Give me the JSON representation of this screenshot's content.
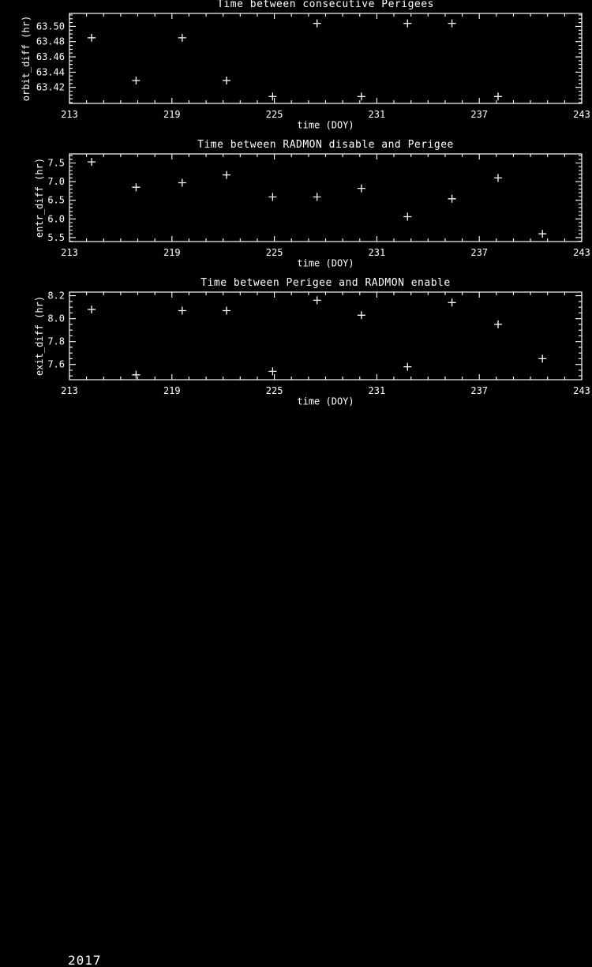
{
  "window": {
    "background": "#000000",
    "foreground": "#ffffff"
  },
  "footer": {
    "year": "2017"
  },
  "chart_data": [
    {
      "type": "scatter",
      "title": "Time between consecutive Perigees",
      "xlabel": "time (DOY)",
      "ylabel": "orbit_diff (hr)",
      "marker": "plus",
      "grid": false,
      "legend": null,
      "xlim": [
        213,
        243
      ],
      "ylim": [
        63.399,
        63.517
      ],
      "xticks": [
        213,
        219,
        225,
        231,
        237,
        243
      ],
      "xtick_labels": [
        "213",
        "219",
        "225",
        "231",
        "237",
        "243"
      ],
      "yticks": [
        63.42,
        63.44,
        63.46,
        63.48,
        63.5
      ],
      "ytick_labels": [
        "63.42",
        "63.44",
        "63.46",
        "63.48",
        "63.50"
      ],
      "x_minor_step": 1,
      "y_minor_step": 0.005,
      "x": [
        214.3,
        216.9,
        219.6,
        222.2,
        224.9,
        227.5,
        230.1,
        232.8,
        235.4,
        238.1
      ],
      "y": [
        63.485,
        63.429,
        63.485,
        63.429,
        63.408,
        63.504,
        63.408,
        63.504,
        63.504,
        63.408
      ]
    },
    {
      "type": "scatter",
      "title": "Time between RADMON disable and Perigee",
      "xlabel": "time (DOY)",
      "ylabel": "entr_diff (hr)",
      "marker": "plus",
      "grid": false,
      "legend": null,
      "xlim": [
        213,
        243
      ],
      "ylim": [
        5.392,
        7.744
      ],
      "xticks": [
        213,
        219,
        225,
        231,
        237,
        243
      ],
      "xtick_labels": [
        "213",
        "219",
        "225",
        "231",
        "237",
        "243"
      ],
      "yticks": [
        5.5,
        6.0,
        6.5,
        7.0,
        7.5
      ],
      "ytick_labels": [
        "5.5",
        "6.0",
        "6.5",
        "7.0",
        "7.5"
      ],
      "x_minor_step": 1,
      "y_minor_step": 0.1,
      "x": [
        214.3,
        216.9,
        219.6,
        222.2,
        224.9,
        227.5,
        230.1,
        232.8,
        235.4,
        238.1,
        240.7
      ],
      "y": [
        7.53,
        6.85,
        6.97,
        7.18,
        6.59,
        6.59,
        6.82,
        6.06,
        6.54,
        7.1,
        5.6
      ]
    },
    {
      "type": "scatter",
      "title": "Time between Perigee and RADMON enable",
      "xlabel": "time (DOY)",
      "ylabel": "exit_diff (hr)",
      "marker": "plus",
      "grid": false,
      "legend": null,
      "xlim": [
        213,
        243
      ],
      "ylim": [
        7.467,
        8.232
      ],
      "xticks": [
        213,
        219,
        225,
        231,
        237,
        243
      ],
      "xtick_labels": [
        "213",
        "219",
        "225",
        "231",
        "237",
        "243"
      ],
      "yticks": [
        7.6,
        7.8,
        8.0,
        8.2
      ],
      "ytick_labels": [
        "7.6",
        "7.8",
        "8.0",
        "8.2"
      ],
      "x_minor_step": 1,
      "y_minor_step": 0.05,
      "x": [
        214.3,
        216.9,
        219.6,
        222.2,
        224.9,
        227.5,
        230.1,
        232.8,
        235.4,
        238.1,
        240.7
      ],
      "y": [
        8.08,
        7.51,
        8.07,
        8.07,
        7.54,
        8.16,
        8.03,
        7.58,
        8.14,
        7.95,
        7.65
      ]
    }
  ]
}
